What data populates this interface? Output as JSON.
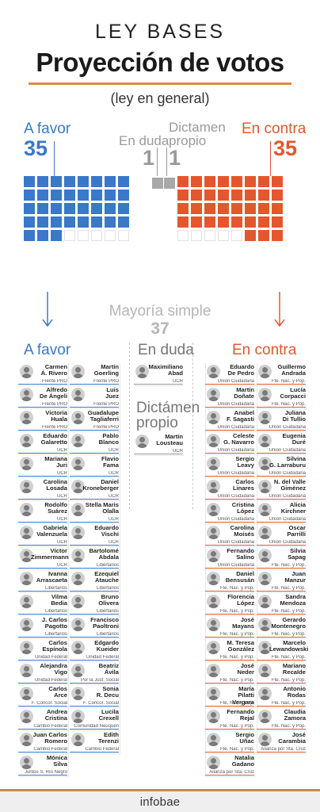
{
  "header": {
    "supertitle": "LEY BASES",
    "title": "Proyección de votos",
    "subtitle": "(ley en general)"
  },
  "tally": {
    "favor": {
      "label": "A favor",
      "count": "35"
    },
    "duda": {
      "label": "En duda",
      "count": "1"
    },
    "dictamen": {
      "label": "Dictamen\npropio",
      "count": "1"
    },
    "contra": {
      "label": "En contra",
      "count": "35"
    }
  },
  "majority": {
    "label": "Mayoría simple",
    "count": "37"
  },
  "colors": {
    "favor": "#3a78c9",
    "contra": "#e4572e",
    "undecided": "#a8a8a8",
    "accent": "#e08a3c"
  },
  "columns": {
    "favor_title": "A favor",
    "duda_title": "En duda",
    "dictamen_title": "Dictámen\npropio",
    "contra_title": "En contra"
  },
  "favor_list": [
    {
      "name": "Carmen\nÁ. Rivero",
      "bloc": "Frente PRO"
    },
    {
      "name": "Martín\nGoerling",
      "bloc": "Frente PRO"
    },
    {
      "name": "Alfredo\nDe Ángeli",
      "bloc": "Frente PRO"
    },
    {
      "name": "Luis\nJuez",
      "bloc": "Frente PRO"
    },
    {
      "name": "Victoria\nHuala",
      "bloc": "Frente PRO"
    },
    {
      "name": "Guadalupe\nTagliaferri",
      "bloc": "Frente PRO"
    },
    {
      "name": "Eduardo\nGalaretto",
      "bloc": "UCR"
    },
    {
      "name": "Pablo\nBlanco",
      "bloc": "UCR"
    },
    {
      "name": "Mariana\nJuri",
      "bloc": "UCR"
    },
    {
      "name": "Flavio\nFama",
      "bloc": "UCR"
    },
    {
      "name": "Carolina\nLosada",
      "bloc": "UCR"
    },
    {
      "name": "Daniel\nKroneberger",
      "bloc": "UCR"
    },
    {
      "name": "Rodolfo\nSuárez",
      "bloc": "UCR"
    },
    {
      "name": "Stella Maris\nOlalla",
      "bloc": "UCR"
    },
    {
      "name": "Gabriela\nValenzuela",
      "bloc": "UCR"
    },
    {
      "name": "Eduardo\nVischi",
      "bloc": "UCR"
    },
    {
      "name": "Víctor\nZimmermann",
      "bloc": "UCR"
    },
    {
      "name": "Bartolomé\nAbdala",
      "bloc": "Libertarios"
    },
    {
      "name": "Ivanna\nArrascaeta",
      "bloc": "Libertarios"
    },
    {
      "name": "Ezequiel\nAtauche",
      "bloc": "Libertarios"
    },
    {
      "name": "Vilma\nBedia",
      "bloc": "Libertarios"
    },
    {
      "name": "Bruno\nOlivera",
      "bloc": "Libertarios"
    },
    {
      "name": "J. Carlos\nPagotto",
      "bloc": "Libertarios"
    },
    {
      "name": "Francisco\nPaoltroni",
      "bloc": "Libertarios"
    },
    {
      "name": "Carlos\nEspínola",
      "bloc": "Unidad Federal"
    },
    {
      "name": "Edgardo\nKueider",
      "bloc": "Unidad Federal"
    },
    {
      "name": "Alejandra\nVigo",
      "bloc": "Unidad Federal"
    },
    {
      "name": "Beatriz\nÁvila",
      "bloc": "Por la Just. Social"
    },
    {
      "name": "Carlos\nArce",
      "bloc": "F. Concor. Social"
    },
    {
      "name": "Sonia\nR. Decu",
      "bloc": "F. Concor. Social"
    },
    {
      "name": "Andrea\nCristina",
      "bloc": "Cambio Federal"
    },
    {
      "name": "Lucila\nCrexell",
      "bloc": "Comunidad Neuquén"
    },
    {
      "name": "Juan Carlos\nRomero",
      "bloc": "Cambio Federal"
    },
    {
      "name": "Edith\nTerenzi",
      "bloc": "Cambio Federal"
    },
    {
      "name": "Mónica\nSilva",
      "bloc": "Juntos S. Río Negro"
    }
  ],
  "duda_list": [
    {
      "name": "Maximiliano\nAbad",
      "bloc": "UCR"
    }
  ],
  "dictamen_list": [
    {
      "name": "Martín\nLousteau",
      "bloc": "UCR"
    }
  ],
  "contra_list": [
    {
      "name": "Eduardo\nDe Pedro",
      "bloc": "Unión Ciudadana"
    },
    {
      "name": "Guillermo\nAndrada",
      "bloc": "Fte. Nac. y Pop."
    },
    {
      "name": "Martín\nDoñate",
      "bloc": "Unión Ciudadana"
    },
    {
      "name": "Lucía\nCorpacci",
      "bloc": "Fte. Nac. y Pop."
    },
    {
      "name": "Anabel\nF. Sagasti",
      "bloc": "Unión Ciudadana"
    },
    {
      "name": "Juliana\nDi Tullio",
      "bloc": "Unión Ciudadana"
    },
    {
      "name": "Celeste\nG. Navarro",
      "bloc": "Unión Ciudadana"
    },
    {
      "name": "Eugenia\nDuré",
      "bloc": "Unión Ciudadana"
    },
    {
      "name": "Sergio\nLeavy",
      "bloc": "Unión Ciudadana"
    },
    {
      "name": "Silvina\nG. Larraburu",
      "bloc": "Unión Ciudadana"
    },
    {
      "name": "Carlos\nLinares",
      "bloc": "Unión Ciudadana"
    },
    {
      "name": "N. del Valle\nGiménez",
      "bloc": "Unión Ciudadana"
    },
    {
      "name": "Cristina\nLópez",
      "bloc": "Unión Ciudadana"
    },
    {
      "name": "Alicia\nKirchner",
      "bloc": "Unión Ciudadana"
    },
    {
      "name": "Carolina\nMoisés",
      "bloc": "Unión Ciudadana"
    },
    {
      "name": "Oscar\nParrilli",
      "bloc": "Unión Ciudadana"
    },
    {
      "name": "Fernando\nSalino",
      "bloc": "Unión Ciudadana"
    },
    {
      "name": "Silvia\nSapag",
      "bloc": "Fte. Nac. y Pop."
    },
    {
      "name": "Daniel\nBensusán",
      "bloc": "Fte. Nac. y Pop."
    },
    {
      "name": "Juan\nManzur",
      "bloc": "Fte. Nac. y Pop."
    },
    {
      "name": "Florencia\nLópez",
      "bloc": "Fte. Nac. y Pop."
    },
    {
      "name": "Sandra\nMendoza",
      "bloc": "Fte. Nac. y Pop."
    },
    {
      "name": "José\nMayans",
      "bloc": "Fte. Nac. y Pop."
    },
    {
      "name": "Gerardo\nMontenegro",
      "bloc": "Fte. Nac. y Pop."
    },
    {
      "name": "M. Teresa\nGonzález",
      "bloc": "Fte. Nac. y Pop."
    },
    {
      "name": "Marcelo\nLewandowski",
      "bloc": "Fte. Nac. y Pop."
    },
    {
      "name": "José\nNeder",
      "bloc": "Fte. Nac. y Pop."
    },
    {
      "name": "Mariano\nRecalde",
      "bloc": "Fte. Nac. y Pop."
    },
    {
      "name": "María\nPilatti Vergara",
      "bloc": "Fte. Nac. y Pop."
    },
    {
      "name": "Antonio\nRodas",
      "bloc": "Fte. Nac. y Pop."
    },
    {
      "name": "Fernando\nRejal",
      "bloc": "Fte. Nac. y Pop."
    },
    {
      "name": "Claudia\nZamora",
      "bloc": "Fte. Nac. y Pop."
    },
    {
      "name": "Sergio\nUñac",
      "bloc": "Fte. Nac. y Pop."
    },
    {
      "name": "José\nCarambia",
      "bloc": "Alianza por Sta. Cruz"
    },
    {
      "name": "Natalia\nGadano",
      "bloc": "Alianza por Sta. Cruz"
    }
  ],
  "footer": {
    "brand": "infobae"
  }
}
